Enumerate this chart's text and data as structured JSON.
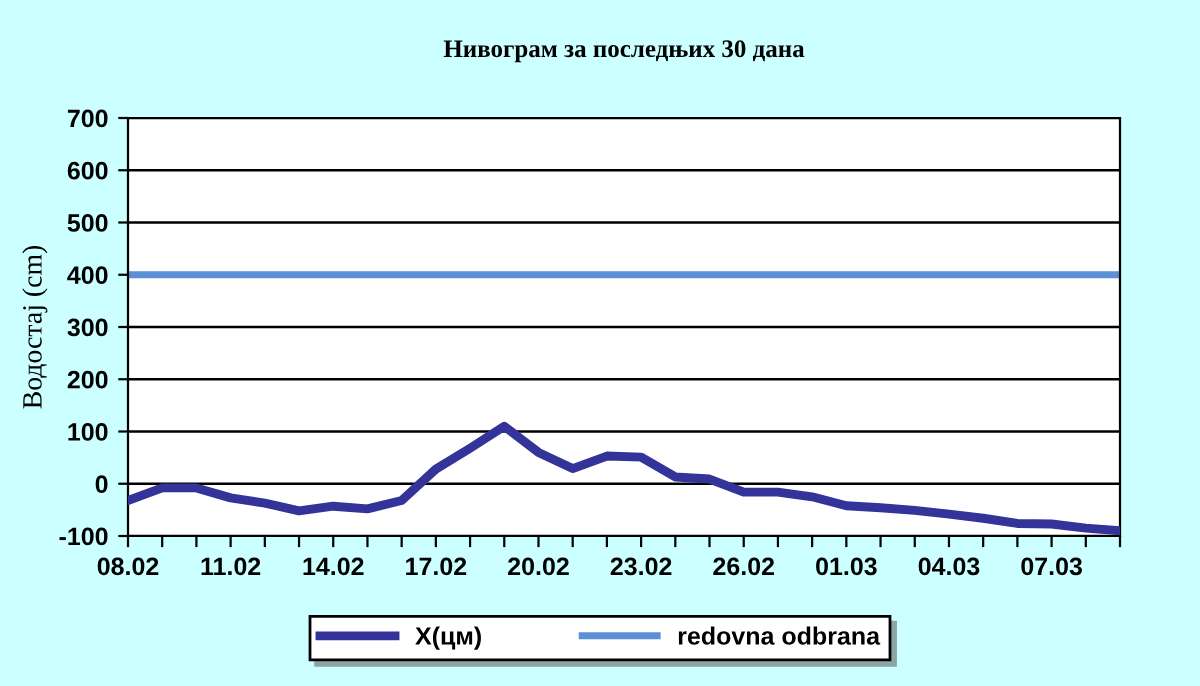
{
  "chart_data": {
    "type": "line",
    "title": "Нивограм за последњих 30 дана",
    "ylabel": "Водостај (cm)",
    "categories": [
      "08.02",
      null,
      null,
      "11.02",
      null,
      null,
      "14.02",
      null,
      null,
      "17.02",
      null,
      null,
      "20.02",
      null,
      null,
      "23.02",
      null,
      null,
      "26.02",
      null,
      null,
      "01.03",
      null,
      null,
      "04.03",
      null,
      null,
      "07.03",
      null,
      null
    ],
    "series": [
      {
        "name": "X(цм)",
        "color": "#333399",
        "values": [
          -32,
          -8,
          -8,
          -27,
          -37,
          -52,
          -43,
          -48,
          -32,
          28,
          68,
          110,
          60,
          29,
          53,
          51,
          13,
          9,
          -16,
          -16,
          -25,
          -42,
          -46,
          -51,
          -58,
          -66,
          -76,
          -77,
          -85,
          -90
        ]
      }
    ],
    "ref_lines": [
      {
        "axis": "y",
        "value": 400,
        "label": "redovna odbrana",
        "color": "#5b8fd6"
      }
    ],
    "ylim": [
      -100,
      700
    ],
    "yticks": [
      -100,
      0,
      100,
      200,
      300,
      400,
      500,
      600,
      700
    ],
    "grid": "y",
    "legend": "bottom",
    "marker": "none",
    "line_style": "solid"
  }
}
